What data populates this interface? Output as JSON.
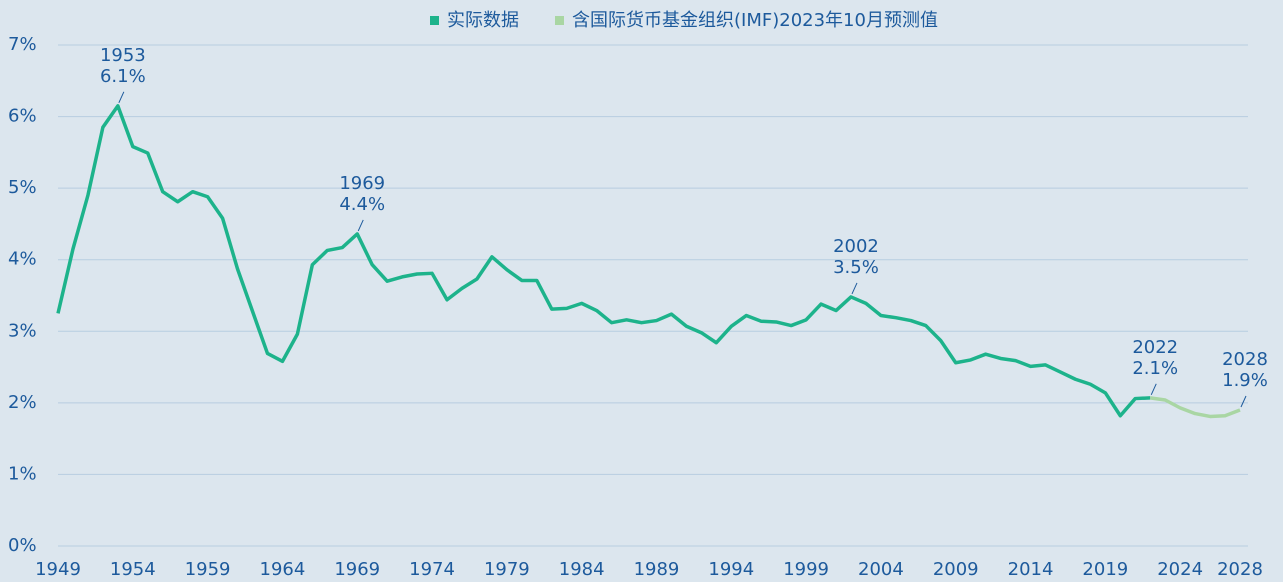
{
  "chart_data": {
    "type": "line",
    "x": [
      1949,
      1950,
      1951,
      1952,
      1953,
      1954,
      1955,
      1956,
      1957,
      1958,
      1959,
      1960,
      1961,
      1962,
      1963,
      1964,
      1965,
      1966,
      1967,
      1968,
      1969,
      1970,
      1971,
      1972,
      1973,
      1974,
      1975,
      1976,
      1977,
      1978,
      1979,
      1980,
      1981,
      1982,
      1983,
      1984,
      1985,
      1986,
      1987,
      1988,
      1989,
      1990,
      1991,
      1992,
      1993,
      1994,
      1995,
      1996,
      1997,
      1998,
      1999,
      2000,
      2001,
      2002,
      2003,
      2004,
      2005,
      2006,
      2007,
      2008,
      2009,
      2010,
      2011,
      2012,
      2013,
      2014,
      2015,
      2016,
      2017,
      2018,
      2019,
      2020,
      2021,
      2022,
      2023,
      2024,
      2025,
      2026,
      2027,
      2028
    ],
    "series": [
      {
        "name": "实际数据",
        "color": "#1db38b",
        "values": [
          3.25,
          4.15,
          4.9,
          5.85,
          6.15,
          5.58,
          5.49,
          4.95,
          4.81,
          4.95,
          4.88,
          4.58,
          3.87,
          3.28,
          2.69,
          2.58,
          2.96,
          3.93,
          4.13,
          4.17,
          4.36,
          3.93,
          3.7,
          3.76,
          3.8,
          3.81,
          3.44,
          3.6,
          3.73,
          4.04,
          3.86,
          3.71,
          3.71,
          3.31,
          3.32,
          3.39,
          3.29,
          3.12,
          3.16,
          3.12,
          3.15,
          3.24,
          3.07,
          2.98,
          2.84,
          3.07,
          3.22,
          3.14,
          3.13,
          3.08,
          3.16,
          3.38,
          3.29,
          3.48,
          3.39,
          3.22,
          3.19,
          3.15,
          3.08,
          2.87,
          2.56,
          2.6,
          2.68,
          2.62,
          2.59,
          2.51,
          2.53,
          2.43,
          2.33,
          2.26,
          2.14,
          1.82,
          2.06,
          2.07,
          null,
          null,
          null,
          null,
          null,
          null
        ]
      },
      {
        "name": "含国际货币基金组织(IMF)2023年10月预测值",
        "color": "#a9d6a3",
        "values": [
          null,
          null,
          null,
          null,
          null,
          null,
          null,
          null,
          null,
          null,
          null,
          null,
          null,
          null,
          null,
          null,
          null,
          null,
          null,
          null,
          null,
          null,
          null,
          null,
          null,
          null,
          null,
          null,
          null,
          null,
          null,
          null,
          null,
          null,
          null,
          null,
          null,
          null,
          null,
          null,
          null,
          null,
          null,
          null,
          null,
          null,
          null,
          null,
          null,
          null,
          null,
          null,
          null,
          null,
          null,
          null,
          null,
          null,
          null,
          null,
          null,
          null,
          null,
          null,
          null,
          null,
          null,
          null,
          null,
          null,
          null,
          null,
          null,
          2.07,
          2.04,
          1.93,
          1.85,
          1.81,
          1.82,
          1.9
        ]
      }
    ],
    "xlim": [
      1949,
      2028
    ],
    "xticks": [
      1949,
      1954,
      1959,
      1964,
      1969,
      1974,
      1979,
      1984,
      1989,
      1994,
      1999,
      2004,
      2009,
      2014,
      2019,
      2024,
      2028
    ],
    "ylim": [
      0,
      7
    ],
    "yticks": [
      {
        "value": 0,
        "label": "0%"
      },
      {
        "value": 1,
        "label": "1%"
      },
      {
        "value": 2,
        "label": "2%"
      },
      {
        "value": 3,
        "label": "3%"
      },
      {
        "value": 4,
        "label": "4%"
      },
      {
        "value": 5,
        "label": "5%"
      },
      {
        "value": 6,
        "label": "6%"
      },
      {
        "value": 7,
        "label": "7%"
      }
    ],
    "grid": true,
    "legend": "top",
    "annotations": [
      {
        "x": 1953,
        "text": [
          "1953",
          "6.1%"
        ]
      },
      {
        "x": 1969,
        "text": [
          "1969",
          "4.4%"
        ]
      },
      {
        "x": 2002,
        "text": [
          "2002",
          "3.5%"
        ]
      },
      {
        "x": 2022,
        "text": [
          "2022",
          "2.1%"
        ]
      },
      {
        "x": 2028,
        "text": [
          "2028",
          "1.9%"
        ]
      }
    ]
  }
}
